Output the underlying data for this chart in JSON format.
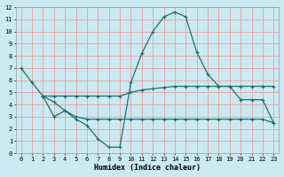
{
  "xlabel": "Humidex (Indice chaleur)",
  "bg_color": "#cbe9f0",
  "grid_color": "#e8a0a0",
  "line_color": "#1a7070",
  "xlim": [
    -0.5,
    23.5
  ],
  "ylim": [
    0,
    12
  ],
  "xticks": [
    0,
    1,
    2,
    3,
    4,
    5,
    6,
    7,
    8,
    9,
    10,
    11,
    12,
    13,
    14,
    15,
    16,
    17,
    18,
    19,
    20,
    21,
    22,
    23
  ],
  "yticks": [
    0,
    1,
    2,
    3,
    4,
    5,
    6,
    7,
    8,
    9,
    10,
    11,
    12
  ],
  "line1_x": [
    0,
    1,
    2,
    3,
    4,
    5,
    6,
    7,
    8,
    9,
    10,
    11,
    12,
    13,
    14,
    15,
    16,
    17,
    18,
    19,
    20,
    21,
    22,
    23
  ],
  "line1_y": [
    7.0,
    5.8,
    4.7,
    3.0,
    3.5,
    2.8,
    2.3,
    1.2,
    0.5,
    0.5,
    5.8,
    8.2,
    10.0,
    11.2,
    11.6,
    11.2,
    8.3,
    6.5,
    5.5,
    5.5,
    5.5,
    5.5,
    5.5,
    5.5
  ],
  "line2_x": [
    2,
    3,
    4,
    5,
    6,
    7,
    8,
    9,
    10,
    11,
    12,
    13,
    14,
    15,
    16,
    17,
    18,
    19,
    20,
    21,
    22,
    23
  ],
  "line2_y": [
    4.7,
    4.7,
    4.7,
    4.7,
    4.7,
    4.7,
    4.7,
    4.7,
    5.0,
    5.2,
    5.3,
    5.4,
    5.5,
    5.5,
    5.5,
    5.5,
    5.5,
    5.5,
    4.4,
    4.4,
    4.4,
    2.5
  ],
  "line3_x": [
    2,
    3,
    4,
    5,
    6,
    7,
    8,
    9,
    10,
    11,
    12,
    13,
    14,
    15,
    16,
    17,
    18,
    19,
    20,
    21,
    22,
    23
  ],
  "line3_y": [
    4.7,
    4.2,
    3.5,
    3.0,
    2.8,
    2.8,
    2.8,
    2.8,
    2.8,
    2.8,
    2.8,
    2.8,
    2.8,
    2.8,
    2.8,
    2.8,
    2.8,
    2.8,
    2.8,
    2.8,
    2.8,
    2.5
  ],
  "xlabel_fontsize": 6.0,
  "tick_fontsize": 5.0
}
